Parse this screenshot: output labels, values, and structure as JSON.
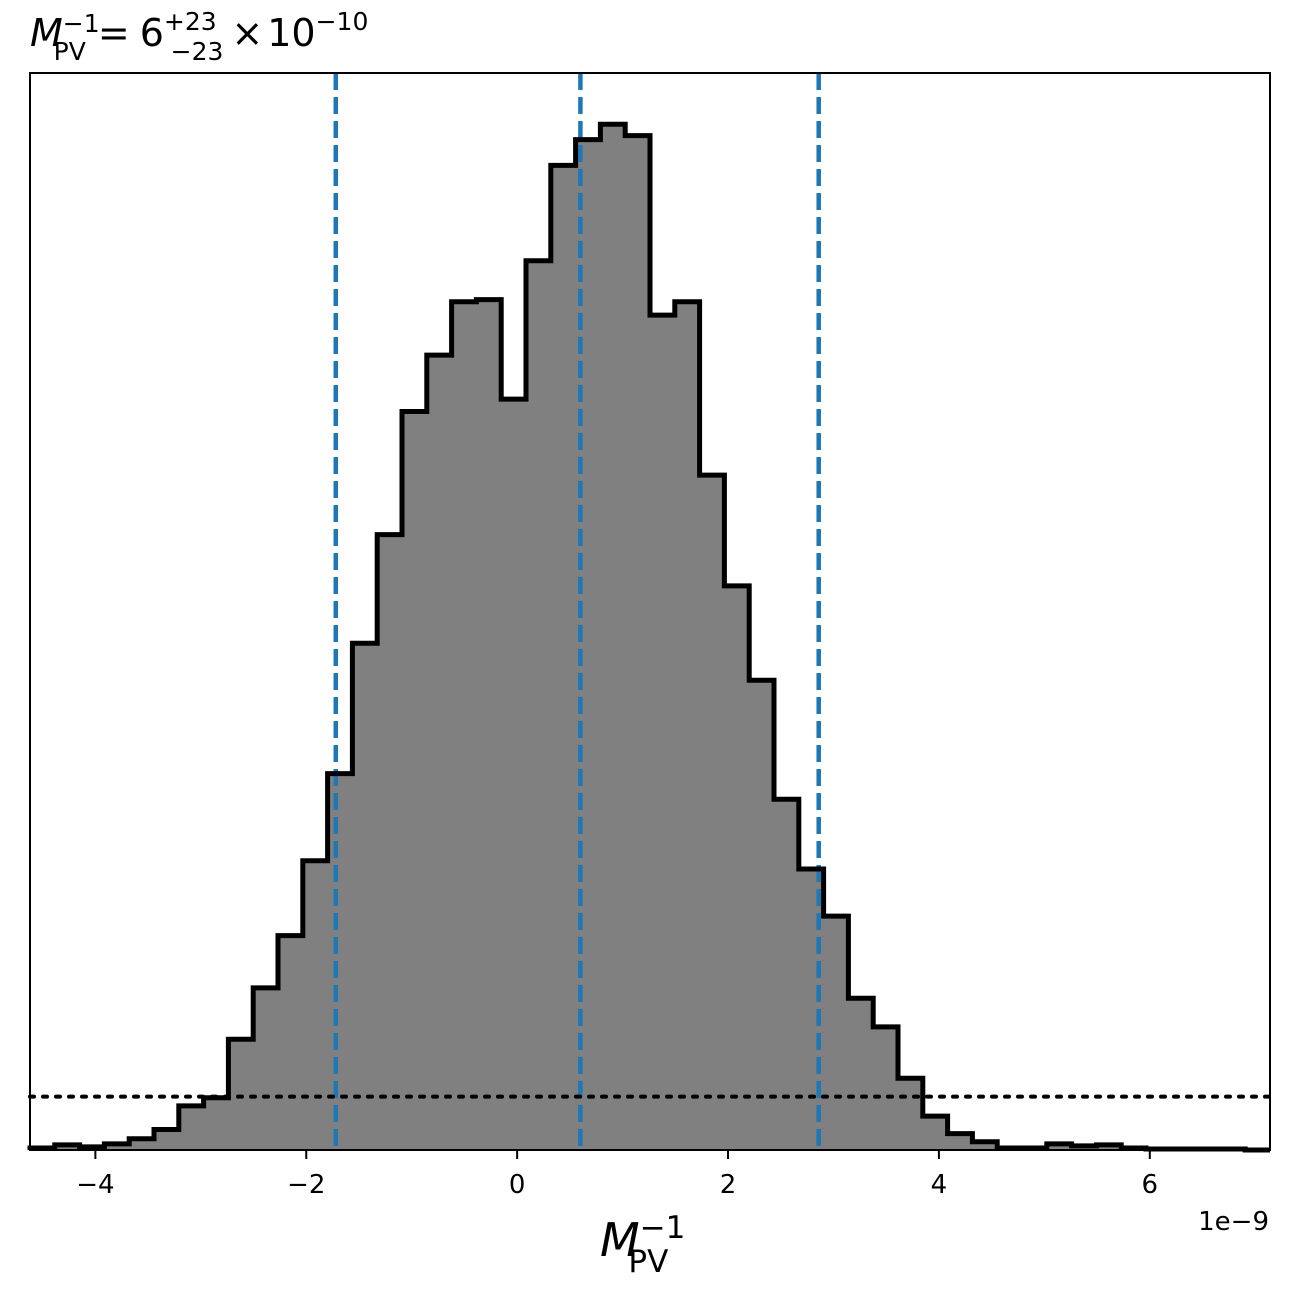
{
  "chart_data": {
    "type": "histogram",
    "title": {
      "symbol": "M",
      "symbol_sub": "PV",
      "symbol_sup": "−1",
      "equals": "=",
      "value": "6",
      "err_plus": "+23",
      "err_minus": "−23",
      "times": "×",
      "base": "10",
      "exponent": "−10"
    },
    "xlabel": {
      "symbol": "M",
      "symbol_sub": "PV",
      "symbol_sup": "−1"
    },
    "x_offset_label": "1e−9",
    "x_scale": 1e-09,
    "xlim": [
      -4.62,
      7.14
    ],
    "x_ticks": [
      {
        "value": -4,
        "label": "−4"
      },
      {
        "value": -2,
        "label": "−2"
      },
      {
        "value": 0,
        "label": "0"
      },
      {
        "value": 2,
        "label": "2"
      },
      {
        "value": 4,
        "label": "4"
      },
      {
        "value": 6,
        "label": "6"
      }
    ],
    "y_ticks_shown": false,
    "ylim": [
      0,
      1.05
    ],
    "bins": {
      "first_edge": -4.62,
      "width": 0.2352,
      "counts": [
        0.002,
        0.005,
        0.003,
        0.006,
        0.011,
        0.02,
        0.043,
        0.051,
        0.108,
        0.158,
        0.209,
        0.282,
        0.367,
        0.494,
        0.6,
        0.72,
        0.775,
        0.827,
        0.829,
        0.732,
        0.867,
        0.96,
        0.985,
        1.0,
        0.989,
        0.814,
        0.827,
        0.658,
        0.55,
        0.458,
        0.342,
        0.274,
        0.228,
        0.148,
        0.12,
        0.07,
        0.033,
        0.016,
        0.008,
        0.002,
        0.002,
        0.006,
        0.004,
        0.005,
        0.002,
        0.001,
        0.001,
        0.001,
        0.001,
        0.0
      ]
    },
    "quantile_lines": [
      -1.72,
      0.6,
      2.86
    ],
    "threshold_level": 0.052,
    "colors": {
      "fill": "#808080",
      "edge": "#000000",
      "quantile": "#1f77b4",
      "threshold": "#000000"
    }
  }
}
